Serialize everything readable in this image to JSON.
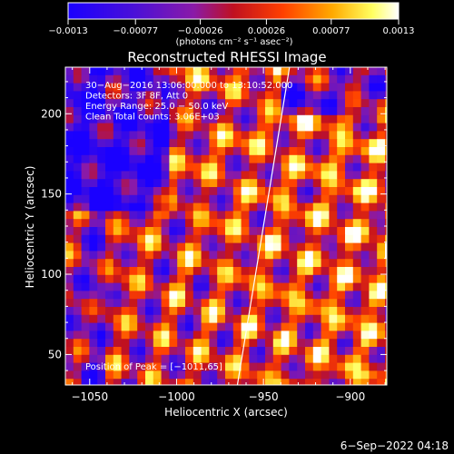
{
  "chart_data": {
    "type": "heatmap",
    "title": "Reconstructed RHESSI Image",
    "xlabel": "Heliocentric X (arcsec)",
    "ylabel": "Heliocentric Y (arcsec)",
    "xlim": [
      -1064,
      -879
    ],
    "ylim": [
      31,
      229
    ],
    "x_ticks": [
      -1050,
      -1000,
      -950,
      -900
    ],
    "x_tick_labels": [
      "−1050",
      "−1000",
      "−950",
      "−900"
    ],
    "y_ticks": [
      50,
      100,
      150,
      200
    ],
    "y_tick_labels": [
      "50",
      "100",
      "150",
      "200"
    ],
    "colorbar": {
      "min": -0.0013,
      "max": 0.0013,
      "ticks": [
        -0.0013,
        -0.00077,
        -0.00026,
        0.00026,
        0.00077,
        0.0013
      ],
      "tick_labels": [
        "−0.0013",
        "−0.00077",
        "−0.00026",
        "0.00026",
        "0.00077",
        "0.0013"
      ],
      "units_label": "(photons cm⁻² s⁻¹ asec⁻²)",
      "colormap": "RHESSI blue-purple-red-yellow-white"
    },
    "annotations": [
      "30−Aug−2016 13:06:00.000 to 13:10:52.000",
      "Detectors: 3F 8F, Att 0",
      "Energy Range: 25.0 − 50.0 keV",
      "Clean     Total counts: 3.06E+03"
    ],
    "peak_label": "Position of Peak = [−1011,65]",
    "limb_line": {
      "x": [
        -965,
        -935
      ],
      "y": [
        31,
        229
      ]
    },
    "grid": false
  },
  "footer_timestamp": "6−Sep−2022 04:18",
  "colors": {
    "background": "#000000",
    "foreground": "#ffffff",
    "cmap_stops": [
      "#1a00ff",
      "#7a1ab8",
      "#c01020",
      "#ff5000",
      "#ffaa00",
      "#ffff60",
      "#ffffff"
    ]
  }
}
